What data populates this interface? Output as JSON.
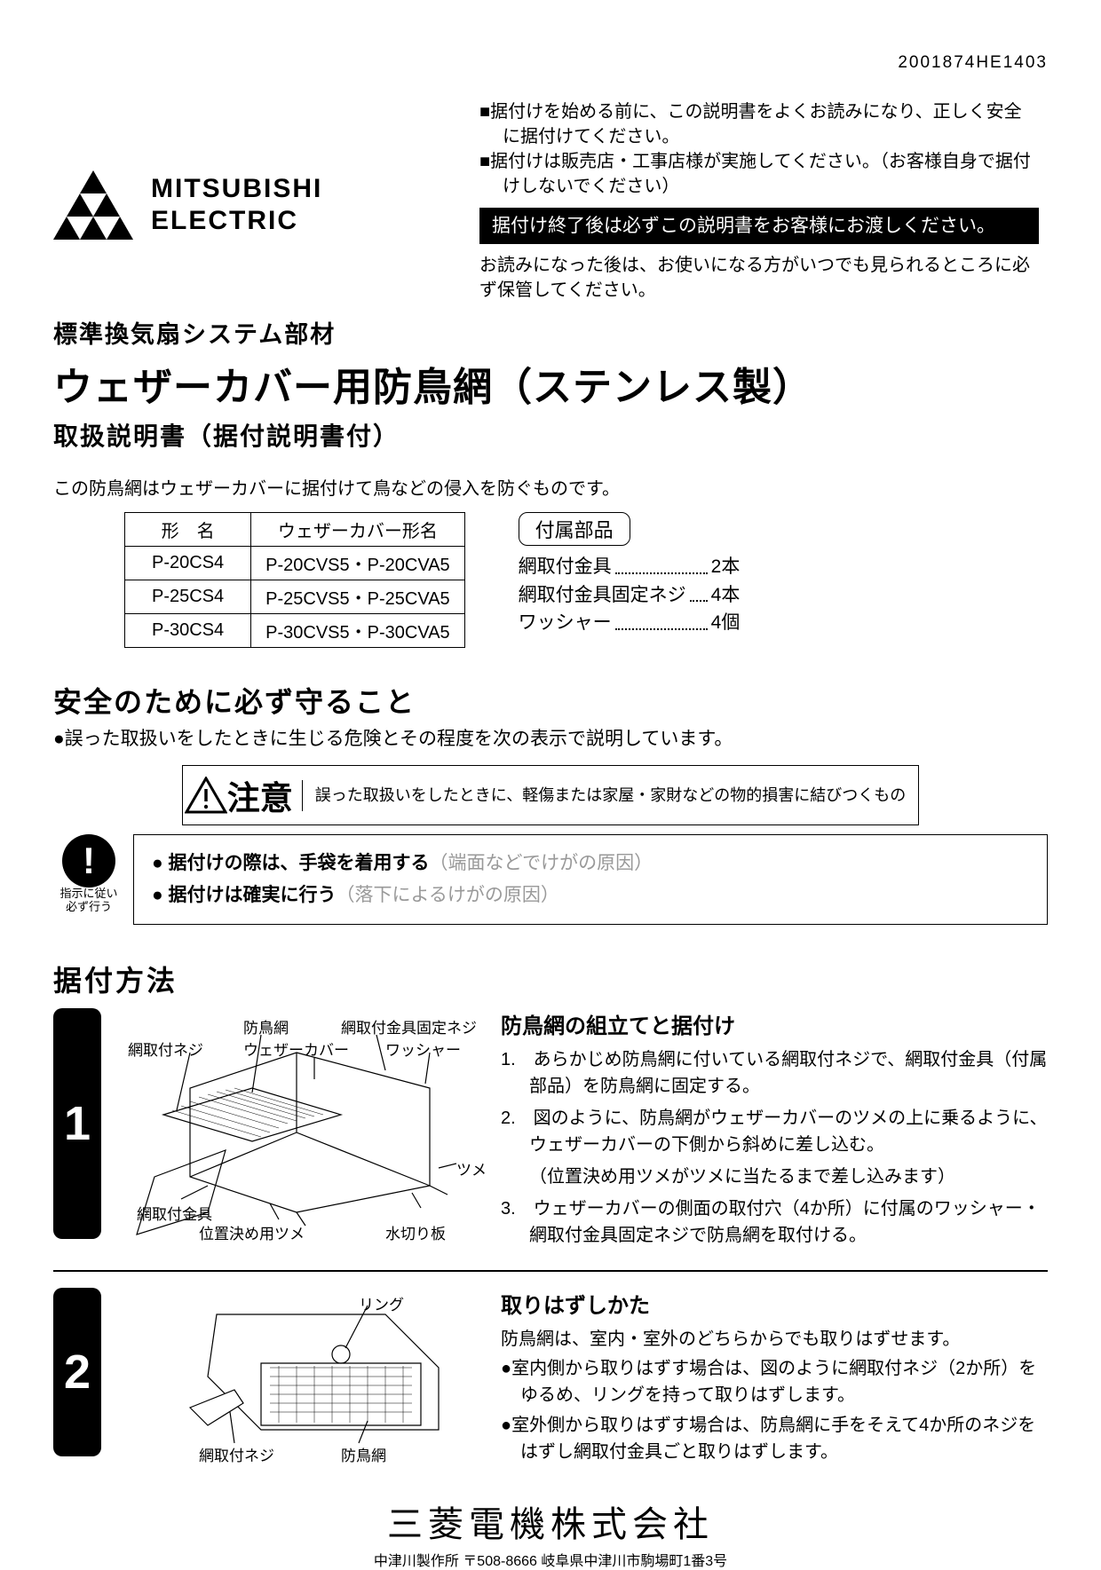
{
  "doc_number": "2001874HE1403",
  "brand": {
    "line1": "MITSUBISHI",
    "line2": "ELECTRIC"
  },
  "notices": {
    "n1": "■据付けを始める前に、この説明書をよくお読みになり、正しく安全に据付けてください。",
    "n2": "■据付けは販売店・工事店様が実施してください。（お客様自身で据付けしないでください）",
    "black": "据付け終了後は必ずこの説明書をお客様にお渡しください。",
    "n3": "お読みになった後は、お使いになる方がいつでも見られるところに必ず保管してください。"
  },
  "headings": {
    "category": "標準換気扇システム部材",
    "product": "ウェザーカバー用防鳥網（ステンレス製）",
    "manual": "取扱説明書（据付説明書付）",
    "intro": "この防鳥網はウェザーカバーに据付けて鳥などの侵入を防ぐものです。"
  },
  "table": {
    "h1": "形　名",
    "h2": "ウェザーカバー形名",
    "rows": [
      [
        "P-20CS4",
        "P-20CVS5・P-20CVA5"
      ],
      [
        "P-25CS4",
        "P-25CVS5・P-25CVA5"
      ],
      [
        "P-30CS4",
        "P-30CVS5・P-30CVA5"
      ]
    ]
  },
  "parts": {
    "label": "付属部品",
    "items": [
      {
        "name": "網取付金具",
        "qty": "2本",
        "short": false
      },
      {
        "name": "網取付金具固定ネジ",
        "qty": "4本",
        "short": true
      },
      {
        "name": "ワッシャー",
        "qty": "4個",
        "short": false
      }
    ]
  },
  "safety": {
    "title": "安全のために必ず守ること",
    "sub": "●誤った取扱いをしたときに生じる危険とその程度を次の表示で説明しています。",
    "caution_label": "注意",
    "caution_desc": "誤った取扱いをしたときに、軽傷または家屋・家財などの物的損害に結びつくもの",
    "icon_l1": "指示に従い",
    "icon_l2": "必ず行う",
    "w1a": "● 据付けの際は、手袋を着用する",
    "w1b": "（端面などでけがの原因）",
    "w2a": "● 据付けは確実に行う",
    "w2b": "（落下によるけがの原因）"
  },
  "install": {
    "title": "据付方法",
    "step1": {
      "heading": "防鳥網の組立てと据付け",
      "i1": "1.　あらかじめ防鳥網に付いている網取付ネジで、網取付金具（付属部品）を防鳥網に固定する。",
      "i2": "2.　図のように、防鳥網がウェザーカバーのツメの上に乗るように、ウェザーカバーの下側から斜めに差し込む。",
      "i2p": "（位置決め用ツメがツメに当たるまで差し込みます）",
      "i3": "3.　ウェザーカバーの側面の取付穴（4か所）に付属のワッシャー・網取付金具固定ネジで防鳥網を取付ける。",
      "labels": {
        "l1": "防鳥網",
        "l2": "網取付金具固定ネジ",
        "l3": "網取付ネジ",
        "l4": "ウェザーカバー",
        "l5": "ワッシャー",
        "l6": "網取付金具",
        "l7": "位置決め用ツメ",
        "l8": "ツメ",
        "l9": "水切り板"
      }
    },
    "step2": {
      "heading": "取りはずしかた",
      "sub": "防鳥網は、室内・室外のどちらからでも取りはずせます。",
      "i1": "●室内側から取りはずす場合は、図のように網取付ネジ（2か所）をゆるめ、リングを持って取りはずします。",
      "i2": "●室外側から取りはずす場合は、防鳥網に手をそえて4か所のネジをはずし網取付金具ごと取りはずします。",
      "labels": {
        "l1": "リング",
        "l2": "網取付ネジ",
        "l3": "防鳥網"
      }
    }
  },
  "footer": {
    "company": "三菱電機株式会社",
    "addr": "中津川製作所 〒508-8666 岐阜県中津川市駒場町1番3号"
  }
}
